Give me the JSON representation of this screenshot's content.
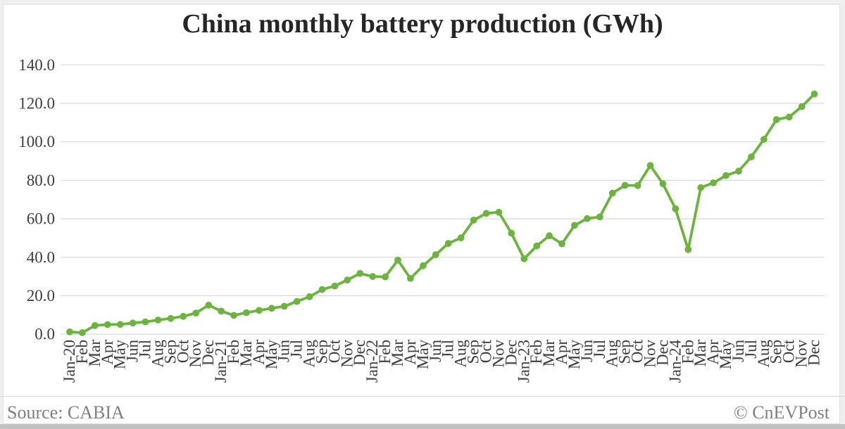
{
  "title": "China monthly battery production (GWh)",
  "footer": {
    "source": "Source: CABIA",
    "credit": "© CnEVPost"
  },
  "colors": {
    "line": "#6CB33F",
    "marker": "#6CB33F",
    "grid": "#D9D9D9",
    "axis_text": "#3D3D3D",
    "title_text": "#262626",
    "footer_text": "#808080"
  },
  "chart_data": {
    "type": "line",
    "title": "China monthly battery production (GWh)",
    "xlabel": "",
    "ylabel": "",
    "ylim": [
      0,
      140
    ],
    "ytick_interval": 20,
    "ytick_labels": [
      "0.0",
      "20.0",
      "40.0",
      "60.0",
      "80.0",
      "100.0",
      "120.0",
      "140.0"
    ],
    "grid": true,
    "legend_position": "none",
    "marker": "circle",
    "categories": [
      "Jan-20",
      "Feb",
      "Mar",
      "Apr",
      "May",
      "Jun",
      "Jul",
      "Aug",
      "Sep",
      "Oct",
      "Nov",
      "Dec",
      "Jan-21",
      "Feb",
      "Mar",
      "Apr",
      "May",
      "Jun",
      "Jul",
      "Aug",
      "Sep",
      "Oct",
      "Nov",
      "Dec",
      "Jan-22",
      "Feb",
      "Mar",
      "Apr",
      "May",
      "Jun",
      "Jul",
      "Aug",
      "Sep",
      "Oct",
      "Nov",
      "Dec",
      "Jan-23",
      "Feb",
      "Mar",
      "Apr",
      "May",
      "Jun",
      "Jul",
      "Aug",
      "Sep",
      "Oct",
      "Nov",
      "Dec",
      "Jan-24",
      "Feb",
      "Mar",
      "Apr",
      "May",
      "Jun",
      "Jul",
      "Aug",
      "Sep",
      "Oct",
      "Nov",
      "Dec"
    ],
    "values": [
      1.2,
      0.8,
      4.5,
      5.0,
      5.1,
      5.8,
      6.4,
      7.4,
      8.2,
      9.3,
      11.0,
      15.1,
      12.0,
      9.8,
      11.2,
      12.4,
      13.5,
      14.5,
      17.0,
      19.5,
      23.2,
      25.1,
      28.2,
      31.6,
      30.0,
      29.8,
      38.5,
      29.0,
      35.6,
      41.3,
      47.2,
      50.1,
      59.3,
      62.8,
      63.4,
      52.5,
      39.2,
      45.9,
      51.2,
      47.0,
      56.6,
      60.1,
      61.0,
      73.3,
      77.4,
      77.3,
      87.7,
      78.2,
      65.2,
      44.0,
      76.2,
      78.7,
      82.5,
      84.8,
      92.2,
      101.3,
      111.6,
      112.9,
      118.3,
      124.9
    ]
  }
}
